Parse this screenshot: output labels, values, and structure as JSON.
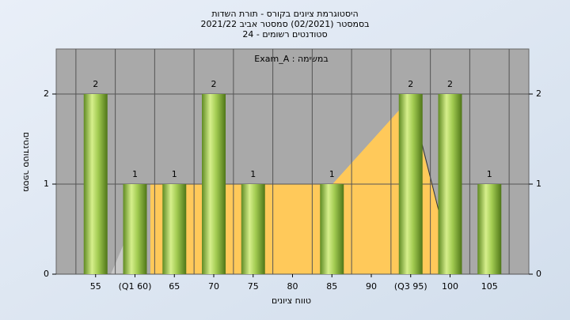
{
  "chart_data": {
    "type": "bar",
    "title": "היסטוגרמת ציונים בקורס - תורת השדות",
    "subtitle": [
      "בסמסטר  (02/2021)  סמסטר אביב 2021/22",
      "סטודנטים רשומים - 24"
    ],
    "annotation": "Exam_A : במשימה",
    "x_label": "טווח ציונים",
    "y_label": "מספר סטודנטים",
    "categories": [
      "55",
      "(Q1 60)",
      "65",
      "70",
      "75",
      "80",
      "85",
      "90",
      "(Q3 95)",
      "100",
      "105"
    ],
    "values": [
      2,
      1,
      1,
      2,
      1,
      null,
      1,
      null,
      2,
      2,
      1
    ],
    "color": "#8fbf3f",
    "ylim": [
      0,
      2.5
    ],
    "yticks": [
      0,
      1,
      2
    ],
    "grid": true
  }
}
